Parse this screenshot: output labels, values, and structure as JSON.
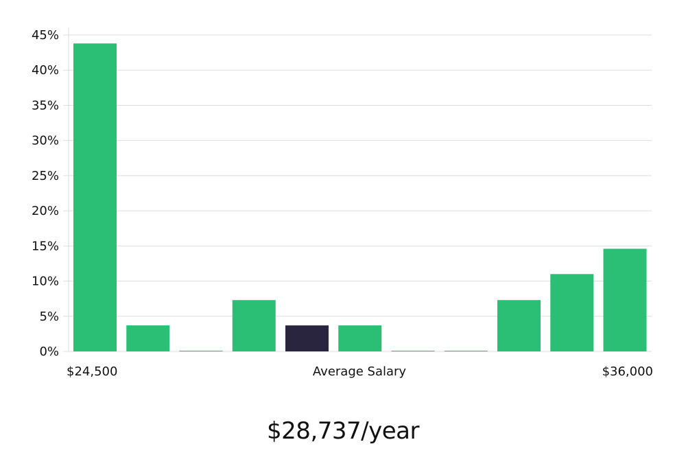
{
  "chart_data": {
    "type": "bar",
    "unit": "%",
    "values": [
      43.8,
      3.7,
      0.1,
      7.3,
      3.7,
      3.7,
      0.1,
      0.1,
      7.3,
      11.0,
      14.6
    ],
    "highlight_index": 4,
    "ylim": [
      0,
      45
    ],
    "yticks": [
      0,
      5,
      10,
      15,
      20,
      25,
      30,
      35,
      40,
      45
    ],
    "ytick_labels": [
      "0%",
      "5%",
      "10%",
      "15%",
      "20%",
      "25%",
      "30%",
      "35%",
      "40%",
      "45%"
    ],
    "x_min_label": "$24,500",
    "x_center_label": "Average Salary",
    "x_max_label": "$36,000",
    "grid": true,
    "colors": {
      "bar": "#2bbf76",
      "highlight": "#29253f",
      "grid": "#dddddd"
    }
  },
  "summary": {
    "salary": "$28,737/year"
  }
}
